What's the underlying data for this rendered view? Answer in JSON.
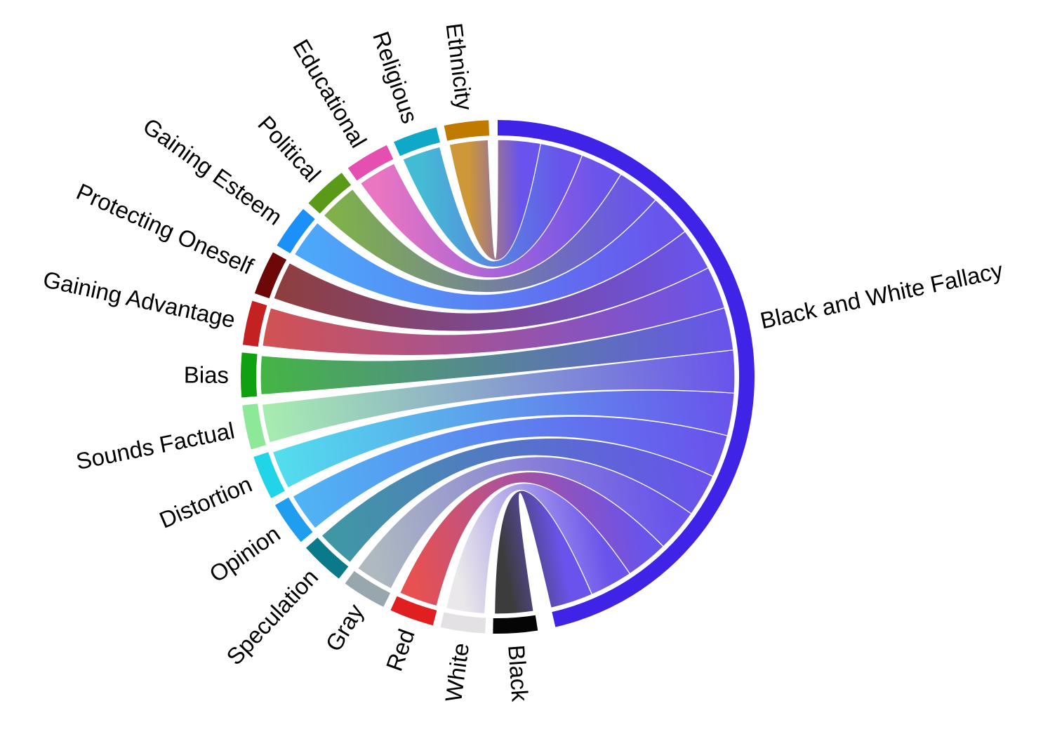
{
  "chart_data": {
    "type": "chord",
    "title": "",
    "hub": {
      "name": "Black and White Fallacy",
      "color": "#3f23e6"
    },
    "groups": [
      {
        "name": "Black",
        "value": 1,
        "color": "#050505"
      },
      {
        "name": "White",
        "value": 1,
        "color": "#e4e1e4"
      },
      {
        "name": "Red",
        "value": 1,
        "color": "#e02020"
      },
      {
        "name": "Gray",
        "value": 1,
        "color": "#98a7ad"
      },
      {
        "name": "Speculation",
        "value": 1,
        "color": "#0a7a8a"
      },
      {
        "name": "Opinion",
        "value": 1,
        "color": "#1f9ef0"
      },
      {
        "name": "Distortion",
        "value": 1,
        "color": "#22d4e8"
      },
      {
        "name": "Sounds Factual",
        "value": 1,
        "color": "#8ee89a"
      },
      {
        "name": "Bias",
        "value": 1,
        "color": "#10a010"
      },
      {
        "name": "Gaining Advantage",
        "value": 1,
        "color": "#c42222"
      },
      {
        "name": "Protecting Oneself",
        "value": 1,
        "color": "#6e0808"
      },
      {
        "name": "Gaining Esteem",
        "value": 1,
        "color": "#1a90f8"
      },
      {
        "name": "Political",
        "value": 1,
        "color": "#5b9a18"
      },
      {
        "name": "Educational",
        "value": 1,
        "color": "#e44fb0"
      },
      {
        "name": "Religious",
        "value": 1,
        "color": "#10a8c8"
      },
      {
        "name": "Ethnicity",
        "value": 1,
        "color": "#c07a00"
      }
    ],
    "legend": "none",
    "grid": false
  }
}
